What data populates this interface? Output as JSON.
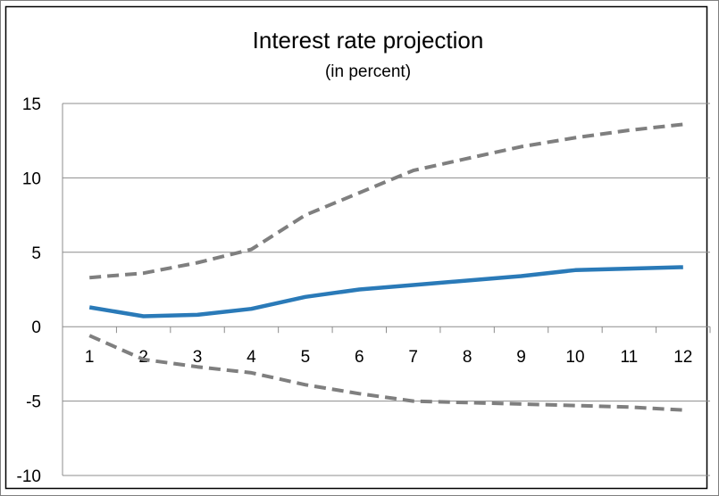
{
  "chart_data": {
    "type": "line",
    "title": "Interest rate projection",
    "subtitle": "(in percent)",
    "xlabel": "",
    "ylabel": "",
    "x": [
      1,
      2,
      3,
      4,
      5,
      6,
      7,
      8,
      9,
      10,
      11,
      12
    ],
    "ylim": [
      -10,
      15
    ],
    "yticks": [
      -10,
      -5,
      0,
      5,
      10,
      15
    ],
    "grid": true,
    "legend": "none",
    "series": [
      {
        "style": "solid",
        "color": "#2a7ab8",
        "values": [
          1.3,
          0.7,
          0.8,
          1.2,
          2.0,
          2.5,
          2.8,
          3.1,
          3.4,
          3.8,
          3.9,
          4.0
        ]
      },
      {
        "style": "dashed",
        "color": "#7f7f7f",
        "values": [
          3.3,
          3.6,
          4.3,
          5.2,
          7.5,
          9.0,
          10.5,
          11.3,
          12.1,
          12.7,
          13.2,
          13.6
        ]
      },
      {
        "style": "dashed",
        "color": "#7f7f7f",
        "values": [
          -0.6,
          -2.2,
          -2.7,
          -3.1,
          -3.9,
          -4.5,
          -5.0,
          -5.1,
          -5.2,
          -5.3,
          -5.4,
          -5.6
        ]
      }
    ]
  }
}
